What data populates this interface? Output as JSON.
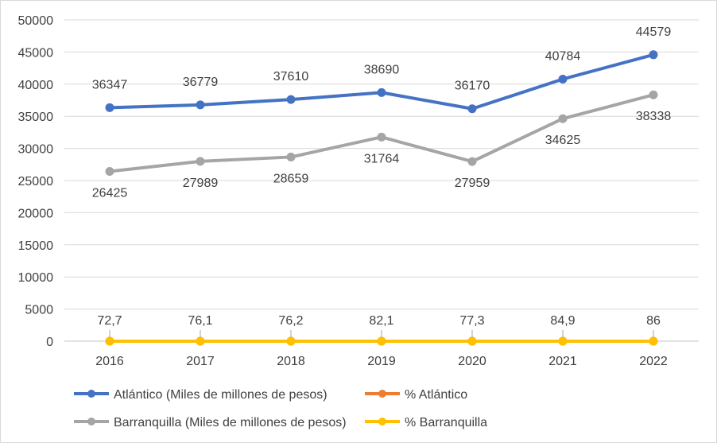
{
  "chart_data": {
    "type": "line",
    "title": "",
    "xlabel": "",
    "ylabel": "",
    "ylim": [
      0,
      50000
    ],
    "yticks": [
      0,
      5000,
      10000,
      15000,
      20000,
      25000,
      30000,
      35000,
      40000,
      45000,
      50000
    ],
    "ytick_labels": [
      "0",
      "5000",
      "10000",
      "15000",
      "20000",
      "25000",
      "30000",
      "35000",
      "40000",
      "45000",
      "50000"
    ],
    "grid": true,
    "legend_position": "bottom",
    "categories": [
      "2016",
      "2017",
      "2018",
      "2019",
      "2020",
      "2021",
      "2022"
    ],
    "series": [
      {
        "name": "Atlántico (Miles de millones de pesos)",
        "color": "#4472C4",
        "values": [
          36347,
          36779,
          37610,
          38690,
          36170,
          40784,
          44579
        ],
        "labels": [
          "36347",
          "36779",
          "37610",
          "38690",
          "36170",
          "40784",
          "44579"
        ],
        "label_position": [
          "above",
          "above",
          "above",
          "above",
          "above",
          "above",
          "above"
        ]
      },
      {
        "name": "% Atlántico",
        "color": "#ED7D31",
        "values": [
          72.7,
          76.1,
          76.2,
          82.1,
          77.3,
          84.9,
          86
        ],
        "labels": [
          "72,7",
          "76,1",
          "76,2",
          "82,1",
          "77,3",
          "84,9",
          "86"
        ],
        "label_position": [
          "above",
          "above",
          "above",
          "above",
          "above",
          "above",
          "above"
        ]
      },
      {
        "name": "Barranquilla (Miles de millones de pesos)",
        "color": "#A5A5A5",
        "values": [
          26425,
          27989,
          28659,
          31764,
          27959,
          34625,
          38338
        ],
        "labels": [
          "26425",
          "27989",
          "28659",
          "31764",
          "27959",
          "34625",
          "38338"
        ],
        "label_position": [
          "below",
          "below",
          "below",
          "below",
          "below",
          "below",
          "below"
        ]
      },
      {
        "name": "% Barranquilla",
        "color": "#FFC000",
        "values": [
          0,
          0,
          0,
          0,
          0,
          0,
          0
        ],
        "labels": [],
        "label_position": []
      }
    ],
    "legend": [
      "Atlántico (Miles de millones de pesos)",
      "% Atlántico",
      "Barranquilla (Miles de millones de pesos)",
      "% Barranquilla"
    ]
  }
}
